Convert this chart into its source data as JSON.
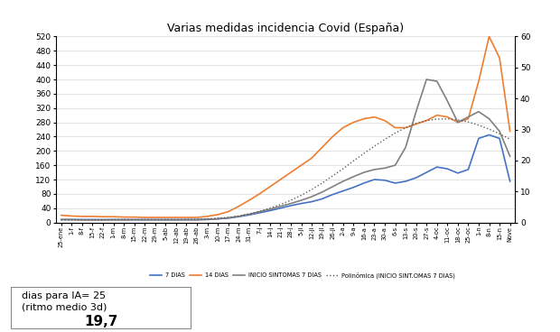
{
  "title": "Varias medidas incidencia Covid (España)",
  "ylim_left": [
    0,
    520
  ],
  "ylim_right": [
    0,
    60
  ],
  "yticks_left": [
    0,
    40,
    80,
    120,
    160,
    200,
    240,
    280,
    320,
    360,
    400,
    440,
    480,
    520
  ],
  "yticks_right": [
    0,
    10,
    20,
    30,
    40,
    50,
    60
  ],
  "background_color": "#ffffff",
  "text_line1": "dias para IA= 25",
  "text_line2": "(ritmo medio 3d)",
  "text_value": "19,7",
  "x_labels": [
    "25-ene",
    "1-f",
    "8-f",
    "15-f",
    "22-f",
    "1-m",
    "8-m",
    "15-m",
    "22-m",
    "29-m",
    "5-ab",
    "12-ab",
    "19-ab",
    "26-ab",
    "3-m",
    "10-m",
    "17-m",
    "24-m",
    "31-m",
    "7-j",
    "14-j",
    "21-j",
    "28-j",
    "5-jl",
    "12-jl",
    "19-jl",
    "26-jl",
    "2-a",
    "9-a",
    "16-a",
    "23-a",
    "30-a",
    "6-s",
    "13-s",
    "20-s",
    "27-s",
    "4-oc",
    "11-oc",
    "18-oc",
    "25-oc",
    "1-n",
    "8-n",
    "15-n",
    "Nove"
  ],
  "series_7dias": [
    8,
    8,
    8,
    8,
    8,
    8,
    8,
    8,
    8,
    8,
    8,
    8,
    8,
    8,
    9,
    10,
    12,
    16,
    21,
    27,
    33,
    40,
    47,
    53,
    58,
    66,
    78,
    88,
    98,
    110,
    120,
    118,
    110,
    115,
    125,
    140,
    155,
    150,
    138,
    148,
    235,
    245,
    235,
    115
  ],
  "series_14dias": [
    20,
    18,
    17,
    17,
    16,
    16,
    15,
    15,
    14,
    14,
    14,
    14,
    14,
    14,
    17,
    22,
    30,
    45,
    62,
    80,
    100,
    120,
    140,
    160,
    180,
    210,
    240,
    265,
    280,
    290,
    295,
    285,
    265,
    265,
    275,
    285,
    300,
    295,
    280,
    290,
    395,
    520,
    460,
    255
  ],
  "series_sint7dias": [
    8,
    8,
    7,
    7,
    7,
    7,
    7,
    7,
    7,
    7,
    7,
    7,
    7,
    7,
    8,
    10,
    13,
    17,
    23,
    30,
    37,
    45,
    53,
    62,
    72,
    85,
    100,
    115,
    128,
    140,
    148,
    152,
    160,
    210,
    310,
    400,
    395,
    340,
    280,
    295,
    310,
    290,
    255,
    185
  ],
  "series_poly": [
    7,
    7,
    7,
    7,
    7,
    8,
    8,
    8,
    8,
    8,
    8,
    8,
    9,
    9,
    10,
    12,
    14,
    18,
    24,
    31,
    40,
    50,
    62,
    76,
    92,
    110,
    130,
    150,
    172,
    193,
    213,
    232,
    250,
    265,
    277,
    285,
    289,
    290,
    287,
    281,
    272,
    261,
    248,
    233
  ],
  "color_7dias": "#4472c4",
  "color_14dias": "#ed7d31",
  "color_sint7dias": "#808080",
  "color_poly": "#606060",
  "linewidth": 1.2,
  "title_fontsize": 9,
  "figwidth": 6.2,
  "figheight": 3.68,
  "dpi": 100
}
